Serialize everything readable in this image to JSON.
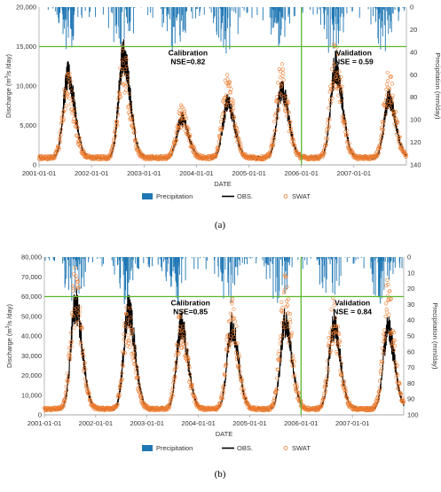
{
  "chart_data": [
    {
      "type": "line",
      "panel_label": "(a)",
      "xlabel": "DATE",
      "ylabel": "Discharge (m³/s /day)",
      "ylabel_base": "Discharge (m",
      "ylabel_sup": "3",
      "ylabel_rest": "/s /day)",
      "y2label": "Precipitation (mm/day)",
      "ylim": [
        0,
        20000
      ],
      "y2lim": [
        0,
        140
      ],
      "y2_inverted": true,
      "xlim": [
        "2001-01-01",
        "2008-01-01"
      ],
      "xticks": [
        "2001-01-01",
        "2002-01-01",
        "2003-01-01",
        "2004-01-01",
        "2005-01-01",
        "2006-01-01",
        "2007-01-01"
      ],
      "yticks": [
        "0",
        "5,000",
        "10,000",
        "15,000",
        "20,000"
      ],
      "y2ticks": [
        "0",
        "20",
        "40",
        "60",
        "80",
        "100",
        "120",
        "140"
      ],
      "split_date": "2006-01-01",
      "split_value": 15000,
      "annotations": {
        "calibration_title": "Calibration",
        "calibration_nse": "NSE=0.82",
        "validation_title": "Validation",
        "validation_nse": "NSE = 0.59"
      },
      "legend": [
        "Precipitation",
        "OBS.",
        "SWAT"
      ],
      "base_flow": 900,
      "peaks": [
        {
          "date": "2001-07-20",
          "obs": 11200,
          "swat": 9800
        },
        {
          "date": "2002-08-10",
          "obs": 13700,
          "swat": 12200
        },
        {
          "date": "2003-09-20",
          "obs": 5800,
          "swat": 6100
        },
        {
          "date": "2004-08-05",
          "obs": 7800,
          "swat": 9700
        },
        {
          "date": "2005-08-15",
          "obs": 9500,
          "swat": 10400
        },
        {
          "date": "2006-08-25",
          "obs": 12500,
          "swat": 12900
        },
        {
          "date": "2007-09-01",
          "obs": 8300,
          "swat": 9600
        }
      ]
    },
    {
      "type": "line",
      "panel_label": "(b)",
      "xlabel": "DATE",
      "ylabel": "Discharge (m³/s /day)",
      "ylabel_base": "Discharge (m",
      "ylabel_sup": "3",
      "ylabel_rest": "/s /day)",
      "y2label": "Precipitation (mm/day)",
      "ylim": [
        0,
        80000
      ],
      "y2lim": [
        0,
        100
      ],
      "y2_inverted": true,
      "xlim": [
        "2001-01-01",
        "2008-01-01"
      ],
      "xticks": [
        "2001-01-01",
        "2002-01-01",
        "2003-01-01",
        "2004-01-01",
        "2005-01-01",
        "2006-01-01",
        "2007-01-01"
      ],
      "yticks": [
        "0",
        "10,000",
        "20,000",
        "30,000",
        "40,000",
        "50,000",
        "60,000",
        "70,000",
        "80,000"
      ],
      "y2ticks": [
        "0",
        "10",
        "20",
        "30",
        "40",
        "50",
        "60",
        "70",
        "80",
        "90",
        "100"
      ],
      "split_date": "2006-01-01",
      "split_value": 60000,
      "annotations": {
        "calibration_title": "Calibration",
        "calibration_nse": "NSE=0.85",
        "validation_title": "Validation",
        "validation_nse": "NSE = 0.84"
      },
      "legend": [
        "Precipitation",
        "OBS.",
        "SWAT"
      ],
      "base_flow": 3000,
      "peaks": [
        {
          "date": "2001-08-10",
          "obs": 56000,
          "swat": 60000
        },
        {
          "date": "2002-08-20",
          "obs": 53000,
          "swat": 47000
        },
        {
          "date": "2003-09-01",
          "obs": 45000,
          "swat": 44000
        },
        {
          "date": "2004-08-25",
          "obs": 45000,
          "swat": 48000
        },
        {
          "date": "2005-09-10",
          "obs": 47000,
          "swat": 57000
        },
        {
          "date": "2006-08-20",
          "obs": 45000,
          "swat": 48000
        },
        {
          "date": "2007-09-10",
          "obs": 43000,
          "swat": 55000
        }
      ]
    }
  ],
  "colors": {
    "precipitation": "#1f77b4",
    "obs": "#000000",
    "swat": "#ed7d31",
    "split": "#5cb82e",
    "axis": "#8c8c8c"
  }
}
